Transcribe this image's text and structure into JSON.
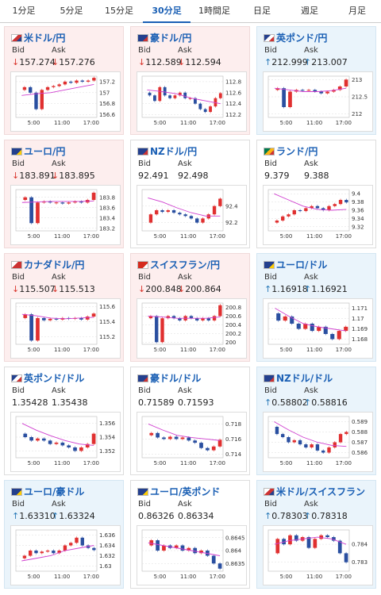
{
  "tabs": [
    "1分足",
    "5分足",
    "15分足",
    "30分足",
    "1時間足",
    "日足",
    "週足",
    "月足"
  ],
  "active_tab": 3,
  "labels": {
    "bid": "Bid",
    "ask": "Ask"
  },
  "xlabels": [
    "5:00",
    "11:00",
    "17:00"
  ],
  "cards": [
    {
      "name": "米ドル/円",
      "flag": "us",
      "trend": "down",
      "arrow": "↓",
      "bid": "157.274",
      "ask": "157.276",
      "ylim": [
        156.55,
        157.3
      ],
      "yticks": [
        157.2,
        157,
        156.8,
        156.6
      ],
      "closes": [
        157.05,
        157.1,
        157.0,
        156.7,
        157.05,
        157.1,
        157.12,
        157.15,
        157.2,
        157.18,
        157.22,
        157.2,
        157.22,
        157.27
      ],
      "ma": [
        156.95,
        156.98,
        157.0,
        157.05,
        157.1,
        157.15
      ]
    },
    {
      "name": "豪ドル/円",
      "flag": "au",
      "trend": "down",
      "arrow": "↓",
      "bid": "112.589",
      "ask": "112.594",
      "ylim": [
        112.15,
        112.9
      ],
      "yticks": [
        112.8,
        112.6,
        112.4,
        112.2
      ],
      "closes": [
        112.6,
        112.55,
        112.45,
        112.7,
        112.55,
        112.5,
        112.55,
        112.6,
        112.5,
        112.5,
        112.4,
        112.3,
        112.25,
        112.35,
        112.5,
        112.59
      ],
      "ma": [
        112.65,
        112.62,
        112.58,
        112.5,
        112.45,
        112.4
      ]
    },
    {
      "name": "英ポンド/円",
      "flag": "gb",
      "trend": "up",
      "arrow": "↑",
      "bid": "212.999",
      "ask": "213.007",
      "ylim": [
        211.9,
        213.1
      ],
      "yticks": [
        213,
        212.5,
        212
      ],
      "closes": [
        212.7,
        212.75,
        212.2,
        212.65,
        212.7,
        212.68,
        212.7,
        212.65,
        212.6,
        212.65,
        212.7,
        212.8,
        213.0
      ],
      "ma": [
        212.75,
        212.7,
        212.65,
        212.65,
        212.68,
        212.75
      ]
    },
    {
      "name": "ユーロ/円",
      "flag": "eu",
      "trend": "down",
      "arrow": "↓",
      "bid": "183.891",
      "ask": "183.895",
      "ylim": [
        183.15,
        183.95
      ],
      "yticks": [
        183.8,
        183.6,
        183.4,
        183.2
      ],
      "closes": [
        183.75,
        183.8,
        183.3,
        183.7,
        183.72,
        183.7,
        183.7,
        183.68,
        183.7,
        183.72,
        183.7,
        183.75,
        183.89
      ],
      "ma": [
        183.7,
        183.71,
        183.72,
        183.72,
        183.72,
        183.73
      ]
    },
    {
      "name": "NZドル/円",
      "flag": "nz",
      "trend": "flat",
      "arrow": null,
      "bid": "92.491",
      "ask": "92.498",
      "ylim": [
        92.1,
        92.6
      ],
      "yticks": [
        92.4,
        92.2
      ],
      "closes": [
        92.2,
        92.3,
        92.35,
        92.33,
        92.35,
        92.32,
        92.3,
        92.28,
        92.25,
        92.2,
        92.25,
        92.3,
        92.4,
        92.49
      ],
      "ma": [
        92.5,
        92.45,
        92.38,
        92.32,
        92.28,
        92.28
      ]
    },
    {
      "name": "ランド/円",
      "flag": "za",
      "trend": "flat",
      "arrow": null,
      "bid": "9.379",
      "ask": "9.388",
      "ylim": [
        9.31,
        9.41
      ],
      "yticks": [
        9.4,
        9.38,
        9.36,
        9.34,
        9.32
      ],
      "closes": [
        9.33,
        9.335,
        9.345,
        9.35,
        9.36,
        9.358,
        9.365,
        9.37,
        9.365,
        9.36,
        9.37,
        9.375,
        9.385,
        9.379
      ],
      "ma": [
        9.4,
        9.385,
        9.37,
        9.362,
        9.36,
        9.362
      ]
    },
    {
      "name": "カナダドル/円",
      "flag": "ca",
      "trend": "down",
      "arrow": "↓",
      "bid": "115.507",
      "ask": "115.513",
      "ylim": [
        115.1,
        115.65
      ],
      "yticks": [
        115.6,
        115.4,
        115.2
      ],
      "closes": [
        115.45,
        115.5,
        115.15,
        115.45,
        115.42,
        115.44,
        115.43,
        115.45,
        115.44,
        115.45,
        115.43,
        115.47,
        115.51
      ],
      "ma": [
        115.5,
        115.48,
        115.45,
        115.44,
        115.45,
        115.46
      ]
    },
    {
      "name": "スイスフラン/円",
      "flag": "ch",
      "trend": "down",
      "arrow": "↓",
      "bid": "200.848",
      "ask": "200.864",
      "ylim": [
        199.95,
        200.9
      ],
      "yticks": [
        200.8,
        200.6,
        200.4,
        200.2,
        200
      ],
      "closes": [
        200.55,
        200.6,
        200.0,
        200.55,
        200.6,
        200.55,
        200.5,
        200.6,
        200.55,
        200.5,
        200.55,
        200.5,
        200.6,
        200.85
      ],
      "ma": [
        200.6,
        200.58,
        200.55,
        200.55,
        200.55,
        200.58
      ]
    },
    {
      "name": "ユーロ/ドル",
      "flag": "eu",
      "trend": "up",
      "arrow": "↑",
      "bid": "1.16918",
      "ask": "1.16921",
      "ylim": [
        1.1675,
        1.1715
      ],
      "yticks": [
        1.171,
        1.17,
        1.169,
        1.168
      ],
      "closes": [
        1.1705,
        1.1698,
        1.1702,
        1.1695,
        1.169,
        1.1695,
        1.1688,
        1.1692,
        1.1685,
        1.168,
        1.1688,
        1.1692
      ],
      "ma": [
        1.171,
        1.1702,
        1.1695,
        1.1692,
        1.169,
        1.1688
      ]
    },
    {
      "name": "英ポンド/ドル",
      "flag": "gb",
      "trend": "flat",
      "arrow": null,
      "bid": "1.35428",
      "ask": "1.35438",
      "ylim": [
        1.351,
        1.357
      ],
      "yticks": [
        1.356,
        1.354,
        1.352
      ],
      "closes": [
        1.3545,
        1.354,
        1.3535,
        1.3538,
        1.3535,
        1.353,
        1.3532,
        1.3528,
        1.3525,
        1.352,
        1.3525,
        1.353,
        1.3545
      ],
      "ma": [
        1.356,
        1.355,
        1.3542,
        1.3535,
        1.353,
        1.3528
      ]
    },
    {
      "name": "豪ドル/ドル",
      "flag": "au",
      "trend": "flat",
      "arrow": null,
      "bid": "0.71589",
      "ask": "0.71593",
      "ylim": [
        0.7135,
        0.719
      ],
      "yticks": [
        0.718,
        0.716,
        0.714
      ],
      "closes": [
        0.7165,
        0.7168,
        0.7162,
        0.716,
        0.7163,
        0.716,
        0.7162,
        0.7158,
        0.7155,
        0.7148,
        0.7145,
        0.715,
        0.7159
      ],
      "ma": [
        0.718,
        0.7172,
        0.7165,
        0.7162,
        0.716,
        0.7158
      ]
    },
    {
      "name": "NZドル/ドル",
      "flag": "nz",
      "trend": "up",
      "arrow": "↑",
      "bid": "0.58802",
      "ask": "0.58816",
      "ylim": [
        0.5855,
        0.5895
      ],
      "yticks": [
        0.589,
        0.588,
        0.587,
        0.586
      ],
      "closes": [
        0.5885,
        0.5878,
        0.5875,
        0.587,
        0.5872,
        0.5868,
        0.5865,
        0.5868,
        0.5862,
        0.586,
        0.5865,
        0.587,
        0.5878,
        0.588
      ],
      "ma": [
        0.589,
        0.5882,
        0.5875,
        0.587,
        0.5867,
        0.5866
      ]
    },
    {
      "name": "ユーロ/豪ドル",
      "flag": "eu",
      "trend": "up",
      "arrow": "↑",
      "bid": "1.63310",
      "ask": "1.63324",
      "ylim": [
        1.629,
        1.637
      ],
      "yticks": [
        1.636,
        1.634,
        1.632,
        1.63
      ],
      "closes": [
        1.6315,
        1.632,
        1.633,
        1.6325,
        1.6328,
        1.633,
        1.6325,
        1.633,
        1.634,
        1.6345,
        1.6355,
        1.634,
        1.6335,
        1.6331
      ],
      "ma": [
        1.631,
        1.6315,
        1.632,
        1.633,
        1.6335,
        1.634
      ]
    },
    {
      "name": "ユーロ/英ポンド",
      "flag": "eu",
      "trend": "flat",
      "arrow": null,
      "bid": "0.86326",
      "ask": "0.86334",
      "ylim": [
        0.8632,
        0.8648
      ],
      "yticks": [
        0.8645,
        0.864,
        0.8635
      ],
      "closes": [
        0.8642,
        0.8644,
        0.864,
        0.8642,
        0.8641,
        0.8642,
        0.864,
        0.8641,
        0.8639,
        0.864,
        0.8638,
        0.8635,
        0.8633
      ],
      "ma": [
        0.8643,
        0.8642,
        0.8641,
        0.864,
        0.8639,
        0.8638
      ]
    },
    {
      "name": "米ドル/スイスフラン",
      "flag": "us",
      "trend": "up",
      "arrow": "↑",
      "bid": "0.78303",
      "ask": "0.78318",
      "ylim": [
        0.7825,
        0.7848
      ],
      "yticks": [
        0.784,
        0.783
      ],
      "closes": [
        0.7835,
        0.7843,
        0.784,
        0.7845,
        0.7842,
        0.7844,
        0.7838,
        0.7843,
        0.7845,
        0.7844,
        0.7842,
        0.7835,
        0.783
      ],
      "ma": [
        0.784,
        0.7842,
        0.7843,
        0.7844,
        0.7843,
        0.784
      ]
    }
  ]
}
